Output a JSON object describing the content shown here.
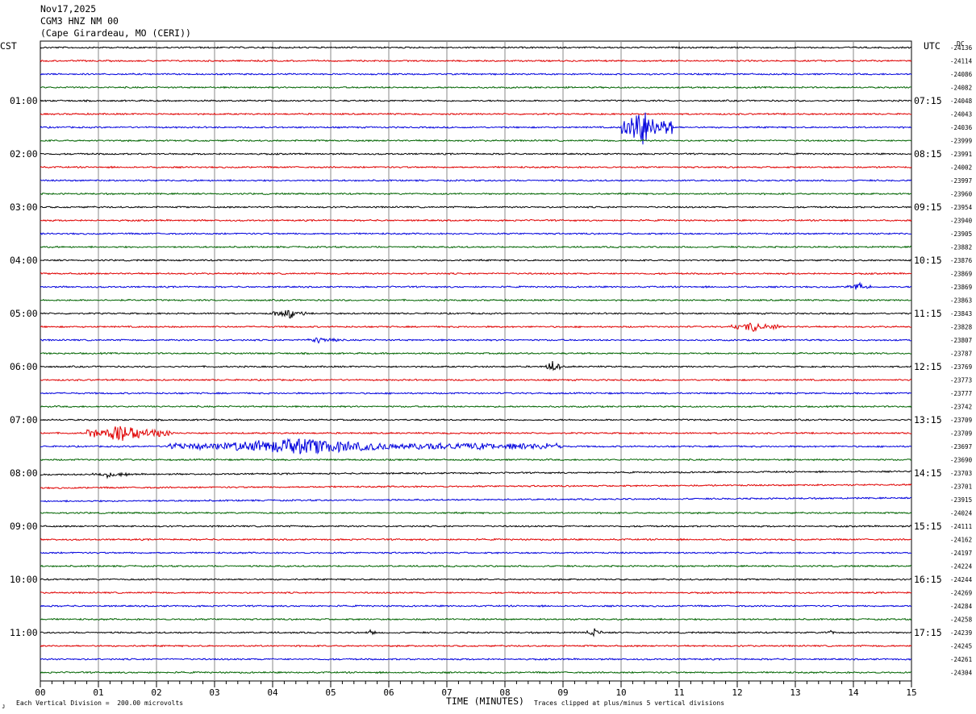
{
  "header": {
    "date": "Nov17,2025",
    "station": "CGM3 HNZ NM 00",
    "location": "(Cape Girardeau, MO (CERI))"
  },
  "axes": {
    "left_tz": "CST",
    "right_tz": "UTC",
    "dc_label": "DC",
    "xlabel": "TIME (MINUTES)"
  },
  "footer": {
    "scale_note": "Each Vertical Division =  200.00 microvolts",
    "clip_note": "Traces clipped at plus/minus 5 vertical divisions"
  },
  "chart_data": {
    "type": "line",
    "subtype": "helicorder",
    "xlim": [
      0,
      15
    ],
    "x_ticks": [
      "00",
      "01",
      "02",
      "03",
      "04",
      "05",
      "06",
      "07",
      "08",
      "09",
      "10",
      "11",
      "12",
      "13",
      "14",
      "15"
    ],
    "left_hour_labels": [
      "01:00",
      "02:00",
      "03:00",
      "04:00",
      "05:00",
      "06:00",
      "07:00",
      "08:00",
      "09:00",
      "10:00",
      "11:00"
    ],
    "right_hour_labels": [
      "07:15",
      "08:15",
      "09:15",
      "10:15",
      "11:15",
      "12:15",
      "13:15",
      "14:15",
      "15:15",
      "16:15",
      "17:15"
    ],
    "trace_colors": [
      "#000000",
      "#e00000",
      "#0000dd",
      "#006400"
    ],
    "dc_offsets": [
      -24136,
      -24114,
      -24086,
      -24082,
      -24048,
      -24043,
      -24036,
      -23999,
      -23991,
      -24002,
      -23997,
      -23960,
      -23954,
      -23940,
      -23905,
      -23882,
      -23876,
      -23869,
      -23869,
      -23863,
      -23843,
      -23828,
      -23807,
      -23787,
      -23769,
      -23773,
      -23777,
      -23742,
      -23709,
      -23709,
      -23697,
      -23690,
      -23703,
      -23701,
      -23915,
      -24024,
      -24111,
      -24162,
      -24197,
      -24224,
      -24244,
      -24269,
      -24284,
      -24258,
      -24239,
      -24245,
      -24261,
      -24304
    ],
    "events": [
      {
        "trace": 6,
        "start_min": 10.0,
        "end_min": 10.9,
        "peak_min": 10.4,
        "amplitude_div": 1.6
      },
      {
        "trace": 18,
        "start_min": 13.9,
        "end_min": 14.3,
        "peak_min": 14.1,
        "amplitude_div": 0.3
      },
      {
        "trace": 20,
        "start_min": 4.0,
        "end_min": 4.6,
        "peak_min": 4.3,
        "amplitude_div": 0.4
      },
      {
        "trace": 21,
        "start_min": 11.9,
        "end_min": 12.8,
        "peak_min": 12.3,
        "amplitude_div": 0.4
      },
      {
        "trace": 22,
        "start_min": 4.6,
        "end_min": 5.2,
        "peak_min": 4.8,
        "amplitude_div": 0.25
      },
      {
        "trace": 24,
        "start_min": 8.7,
        "end_min": 8.95,
        "peak_min": 8.82,
        "amplitude_div": 0.55
      },
      {
        "trace": 29,
        "start_min": 0.8,
        "end_min": 2.3,
        "peak_min": 1.5,
        "amplitude_div": 0.7
      },
      {
        "trace": 30,
        "start_min": 2.2,
        "end_min": 9.0,
        "peak_min": 4.5,
        "amplitude_div": 0.6
      },
      {
        "trace": 32,
        "start_min": 0.9,
        "end_min": 1.6,
        "peak_min": 1.2,
        "amplitude_div": 0.25
      },
      {
        "trace": 44,
        "start_min": 5.6,
        "end_min": 5.8,
        "peak_min": 5.7,
        "amplitude_div": 0.35
      },
      {
        "trace": 44,
        "start_min": 9.4,
        "end_min": 9.7,
        "peak_min": 9.55,
        "amplitude_div": 0.3
      },
      {
        "trace": 44,
        "start_min": 13.5,
        "end_min": 13.8,
        "peak_min": 13.65,
        "amplitude_div": 0.2
      }
    ]
  }
}
